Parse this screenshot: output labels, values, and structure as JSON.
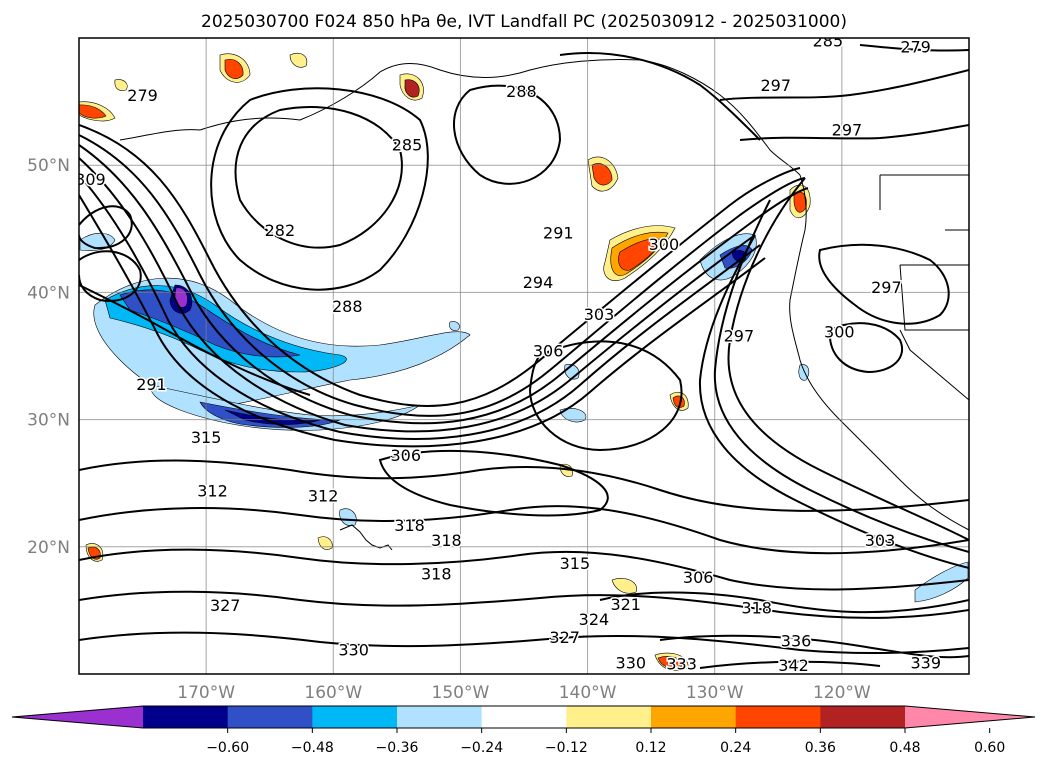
{
  "chart_data": {
    "type": "heatmap",
    "title": "2025030700 F024 850 hPa θe, IVT Landfall PC (2025030912 - 2025031000)",
    "map": {
      "lon_range": [
        -180,
        -110
      ],
      "lat_range": [
        10,
        60
      ],
      "lat_ticks": [
        {
          "value": 50,
          "label": "50°N"
        },
        {
          "value": 40,
          "label": "40°N"
        },
        {
          "value": 30,
          "label": "30°N"
        },
        {
          "value": 20,
          "label": "20°N"
        }
      ],
      "lon_ticks": [
        {
          "value": -170,
          "label": "170°W"
        },
        {
          "value": -160,
          "label": "160°W"
        },
        {
          "value": -150,
          "label": "150°W"
        },
        {
          "value": -140,
          "label": "140°W"
        },
        {
          "value": -130,
          "label": "130°W"
        },
        {
          "value": -120,
          "label": "120°W"
        }
      ],
      "grid": true
    },
    "colorbar": {
      "extend": "both",
      "colors": [
        "#9b30d0",
        "#00008b",
        "#3050c8",
        "#00b8f5",
        "#b0e2ff",
        "#ffffff",
        "#fff08c",
        "#ffa500",
        "#ff4500",
        "#b22222",
        "#ff88aa"
      ],
      "tick_labels": [
        "−0.60",
        "−0.48",
        "−0.36",
        "−0.24",
        "−0.12",
        "0.12",
        "0.24",
        "0.36",
        "0.48",
        "0.60"
      ]
    },
    "theta_e_contour_labels": [
      {
        "text": "279",
        "lon": -175.0,
        "lat": 55.4
      },
      {
        "text": "282",
        "lon": -164.2,
        "lat": 44.8
      },
      {
        "text": "285",
        "lon": -154.2,
        "lat": 51.5
      },
      {
        "text": "288",
        "lon": -145.2,
        "lat": 55.7
      },
      {
        "text": "288",
        "lon": -158.9,
        "lat": 38.8
      },
      {
        "text": "291",
        "lon": -142.3,
        "lat": 44.6
      },
      {
        "text": "294",
        "lon": -143.9,
        "lat": 40.7
      },
      {
        "text": "300",
        "lon": -134.0,
        "lat": 43.7
      },
      {
        "text": "303",
        "lon": -139.1,
        "lat": 38.2
      },
      {
        "text": "306",
        "lon": -143.1,
        "lat": 35.3
      },
      {
        "text": "291",
        "lon": -174.3,
        "lat": 32.7
      },
      {
        "text": "297",
        "lon": -128.1,
        "lat": 36.5
      },
      {
        "text": "300",
        "lon": -120.2,
        "lat": 36.8
      },
      {
        "text": "297",
        "lon": -116.5,
        "lat": 40.3
      },
      {
        "text": "297",
        "lon": -125.2,
        "lat": 56.2
      },
      {
        "text": "297",
        "lon": -119.6,
        "lat": 52.7
      },
      {
        "text": "285",
        "lon": -121.1,
        "lat": 59.7
      },
      {
        "text": "279",
        "lon": -114.2,
        "lat": 59.2
      },
      {
        "text": "306",
        "lon": -154.3,
        "lat": 27.1
      },
      {
        "text": "309",
        "lon": -179.1,
        "lat": 48.8
      },
      {
        "text": "312",
        "lon": -169.5,
        "lat": 24.3
      },
      {
        "text": "312",
        "lon": -160.8,
        "lat": 23.9
      },
      {
        "text": "318",
        "lon": -154.0,
        "lat": 21.6
      },
      {
        "text": "318",
        "lon": -151.1,
        "lat": 20.4
      },
      {
        "text": "318",
        "lon": -151.9,
        "lat": 17.8
      },
      {
        "text": "315",
        "lon": -141.0,
        "lat": 18.6
      },
      {
        "text": "306",
        "lon": -131.3,
        "lat": 17.5
      },
      {
        "text": "303",
        "lon": -117.0,
        "lat": 20.4
      },
      {
        "text": "321",
        "lon": -137.0,
        "lat": 15.4
      },
      {
        "text": "324",
        "lon": -139.5,
        "lat": 14.2
      },
      {
        "text": "327",
        "lon": -141.8,
        "lat": 12.8
      },
      {
        "text": "318",
        "lon": -126.7,
        "lat": 15.1
      },
      {
        "text": "330",
        "lon": -158.4,
        "lat": 11.8
      },
      {
        "text": "330",
        "lon": -136.6,
        "lat": 10.8
      },
      {
        "text": "333",
        "lon": -132.6,
        "lat": 10.7
      },
      {
        "text": "342",
        "lon": -123.8,
        "lat": 10.6
      },
      {
        "text": "339",
        "lon": -113.4,
        "lat": 10.8
      },
      {
        "text": "336",
        "lon": -123.6,
        "lat": 12.5
      },
      {
        "text": "327",
        "lon": -168.5,
        "lat": 15.3
      },
      {
        "text": "315",
        "lon": -170.0,
        "lat": 28.5
      }
    ]
  }
}
